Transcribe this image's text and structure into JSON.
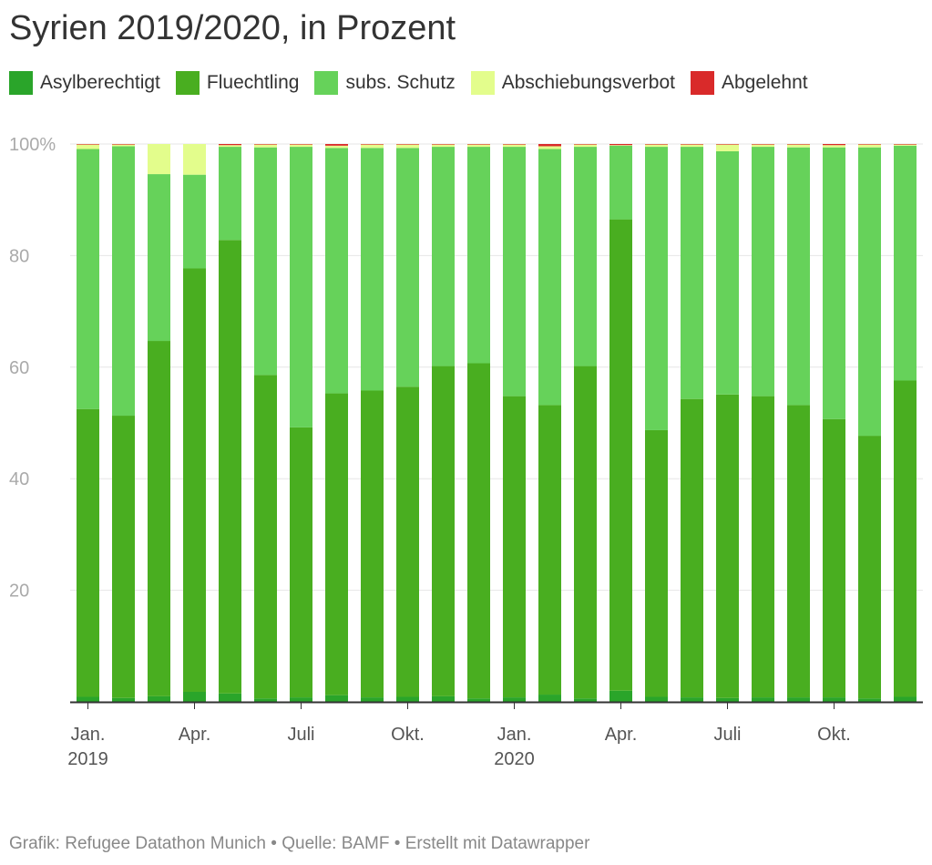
{
  "title": "Syrien 2019/2020, in Prozent",
  "legend": [
    {
      "label": "Asylberechtigt",
      "color": "#2aa52a"
    },
    {
      "label": "Fluechtling",
      "color": "#49ae20"
    },
    {
      "label": "subs. Schutz",
      "color": "#66d25a"
    },
    {
      "label": "Abschiebungsverbot",
      "color": "#e3fd8c"
    },
    {
      "label": "Abgelehnt",
      "color": "#d92a2a"
    }
  ],
  "footer": {
    "credit": "Grafik: Refugee Datathon Munich",
    "source": "Quelle: BAMF",
    "tool": "Erstellt mit Datawrapper",
    "separator": "•"
  },
  "chart_data": {
    "type": "bar",
    "stacked": true,
    "title": "Syrien 2019/2020, in Prozent",
    "xlabel": "",
    "ylabel": "",
    "ylim": [
      0,
      100
    ],
    "y_ticks": [
      "20",
      "40",
      "60",
      "80",
      "100%"
    ],
    "x_tick_labels": [
      {
        "index": 0,
        "lines": [
          "Jan.",
          "2019"
        ]
      },
      {
        "index": 3,
        "lines": [
          "Apr."
        ]
      },
      {
        "index": 6,
        "lines": [
          "Juli"
        ]
      },
      {
        "index": 9,
        "lines": [
          "Okt."
        ]
      },
      {
        "index": 12,
        "lines": [
          "Jan.",
          "2020"
        ]
      },
      {
        "index": 15,
        "lines": [
          "Apr."
        ]
      },
      {
        "index": 18,
        "lines": [
          "Juli"
        ]
      },
      {
        "index": 21,
        "lines": [
          "Okt."
        ]
      }
    ],
    "categories": [
      "2019-01",
      "2019-02",
      "2019-03",
      "2019-04",
      "2019-05",
      "2019-06",
      "2019-07",
      "2019-08",
      "2019-09",
      "2019-10",
      "2019-11",
      "2019-12",
      "2020-01",
      "2020-02",
      "2020-03",
      "2020-04",
      "2020-05",
      "2020-06",
      "2020-07",
      "2020-08",
      "2020-09",
      "2020-10",
      "2020-11",
      "2020-12"
    ],
    "series": [
      {
        "name": "Asylberechtigt",
        "color": "#2aa52a",
        "values": [
          0.9,
          0.7,
          1.0,
          1.8,
          1.5,
          0.6,
          0.8,
          1.2,
          0.8,
          0.9,
          1.0,
          0.6,
          0.8,
          1.3,
          0.6,
          2.0,
          0.9,
          0.8,
          0.7,
          0.8,
          0.8,
          0.8,
          0.6,
          0.9
        ]
      },
      {
        "name": "Fluechtling",
        "color": "#49ae20",
        "values": [
          51.6,
          50.6,
          63.7,
          75.9,
          81.3,
          58.0,
          48.4,
          54.1,
          55.0,
          55.6,
          59.2,
          60.1,
          54.0,
          51.9,
          59.6,
          84.5,
          47.8,
          53.5,
          54.4,
          54.0,
          52.4,
          49.9,
          47.1,
          56.7
        ]
      },
      {
        "name": "subs. Schutz",
        "color": "#66d25a",
        "values": [
          46.6,
          48.3,
          29.9,
          16.8,
          16.7,
          40.8,
          50.3,
          44.0,
          43.5,
          42.8,
          39.3,
          38.8,
          44.7,
          45.9,
          39.3,
          13.2,
          50.8,
          45.2,
          43.6,
          44.7,
          46.2,
          48.7,
          51.7,
          42.1
        ]
      },
      {
        "name": "Abschiebungsverbot",
        "color": "#e3fd8c",
        "values": [
          0.8,
          0.3,
          5.4,
          5.5,
          0.3,
          0.5,
          0.4,
          0.4,
          0.6,
          0.6,
          0.4,
          0.4,
          0.4,
          0.5,
          0.4,
          0.1,
          0.4,
          0.4,
          1.2,
          0.4,
          0.5,
          0.4,
          0.5,
          0.2
        ]
      },
      {
        "name": "Abgelehnt",
        "color": "#d92a2a",
        "values": [
          0.1,
          0.1,
          0.0,
          0.0,
          0.2,
          0.1,
          0.1,
          0.3,
          0.1,
          0.1,
          0.1,
          0.1,
          0.1,
          0.4,
          0.1,
          0.2,
          0.1,
          0.1,
          0.1,
          0.1,
          0.1,
          0.2,
          0.1,
          0.1
        ]
      }
    ]
  }
}
